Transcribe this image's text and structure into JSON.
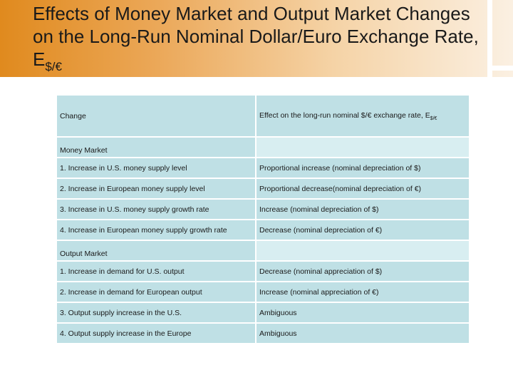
{
  "title": {
    "text": "Effects of Money Market and Output Market Changes on the Long-Run Nominal Dollar/Euro Exchange Rate, E",
    "subscript": "$/€"
  },
  "table": {
    "header": {
      "change": "Change",
      "effect": "Effect on the long-run nominal $/€ exchange rate, E",
      "effect_subscript": "$/€"
    },
    "sections": [
      {
        "label": "Money Market",
        "rows": [
          {
            "change": "1. Increase in U.S. money supply level",
            "effect": "Proportional increase (nominal depreciation of $)"
          },
          {
            "change": "2. Increase in European money supply level",
            "effect": "Proportional decrease(nominal depreciation of €)"
          },
          {
            "change": "3. Increase in U.S. money supply growth rate",
            "effect": "Increase (nominal depreciation of $)"
          },
          {
            "change": "4. Increase in European money supply growth rate",
            "effect": "Decrease (nominal depreciation of €)"
          }
        ]
      },
      {
        "label": "Output Market",
        "rows": [
          {
            "change": "1. Increase in demand for U.S. output",
            "effect": "Decrease (nominal appreciation of $)"
          },
          {
            "change": "2. Increase in demand for European output",
            "effect": "Increase (nominal appreciation of €)"
          },
          {
            "change": "3. Output supply increase in the U.S.",
            "effect": "Ambiguous"
          },
          {
            "change": "4. Output supply increase in the Europe",
            "effect": "Ambiguous"
          }
        ]
      }
    ]
  },
  "colors": {
    "title_band_start": "#e08a1e",
    "title_band_end": "#fbf0e2",
    "cell_background": "#bfe0e5",
    "section_empty_cell": "#d8eef1"
  }
}
